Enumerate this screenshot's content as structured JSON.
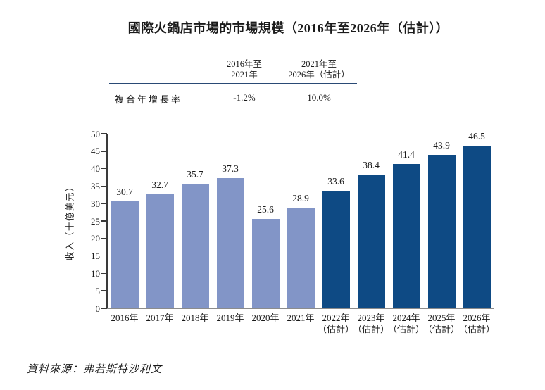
{
  "title": "國際火鍋店市場的市場規模（2016年至2026年（估計））",
  "cagr_table": {
    "columns": [
      {
        "header_line1": "2016年至",
        "header_line2": "2021年"
      },
      {
        "header_line1": "2021年至",
        "header_line2": "2026年（估計）"
      }
    ],
    "row_label": "複合年增長率",
    "row_values": [
      "-1.2%",
      "10.0%"
    ]
  },
  "chart_data": {
    "type": "bar",
    "title": "國際火鍋店市場的市場規模（2016年至2026年（估計））",
    "xlabel": "",
    "ylabel": "收入（十億美元）",
    "ylim": [
      0,
      50
    ],
    "yticks": [
      0,
      5,
      10,
      15,
      20,
      25,
      30,
      35,
      40,
      45,
      50
    ],
    "grid": false,
    "legend": false,
    "bars": [
      {
        "label": "2016年",
        "sublabel": "",
        "value": 30.7,
        "estimated": false
      },
      {
        "label": "2017年",
        "sublabel": "",
        "value": 32.7,
        "estimated": false
      },
      {
        "label": "2018年",
        "sublabel": "",
        "value": 35.7,
        "estimated": false
      },
      {
        "label": "2019年",
        "sublabel": "",
        "value": 37.3,
        "estimated": false
      },
      {
        "label": "2020年",
        "sublabel": "",
        "value": 25.6,
        "estimated": false
      },
      {
        "label": "2021年",
        "sublabel": "",
        "value": 28.9,
        "estimated": false
      },
      {
        "label": "2022年",
        "sublabel": "（估計）",
        "value": 33.6,
        "estimated": true
      },
      {
        "label": "2023年",
        "sublabel": "（估計）",
        "value": 38.4,
        "estimated": true
      },
      {
        "label": "2024年",
        "sublabel": "（估計）",
        "value": 41.4,
        "estimated": true
      },
      {
        "label": "2025年",
        "sublabel": "（估計）",
        "value": 43.9,
        "estimated": true
      },
      {
        "label": "2026年",
        "sublabel": "（估計）",
        "value": 46.5,
        "estimated": true
      }
    ],
    "colors": {
      "historical": "#8295C7",
      "estimated": "#0E4A84"
    }
  },
  "colors": {
    "table_rule": "#2A4A75",
    "axis_line": "#3A3A3A",
    "baseline": "#8C8C8C",
    "text": "#1A1A1A"
  },
  "source_note": "資料來源：弗若斯特沙利文"
}
